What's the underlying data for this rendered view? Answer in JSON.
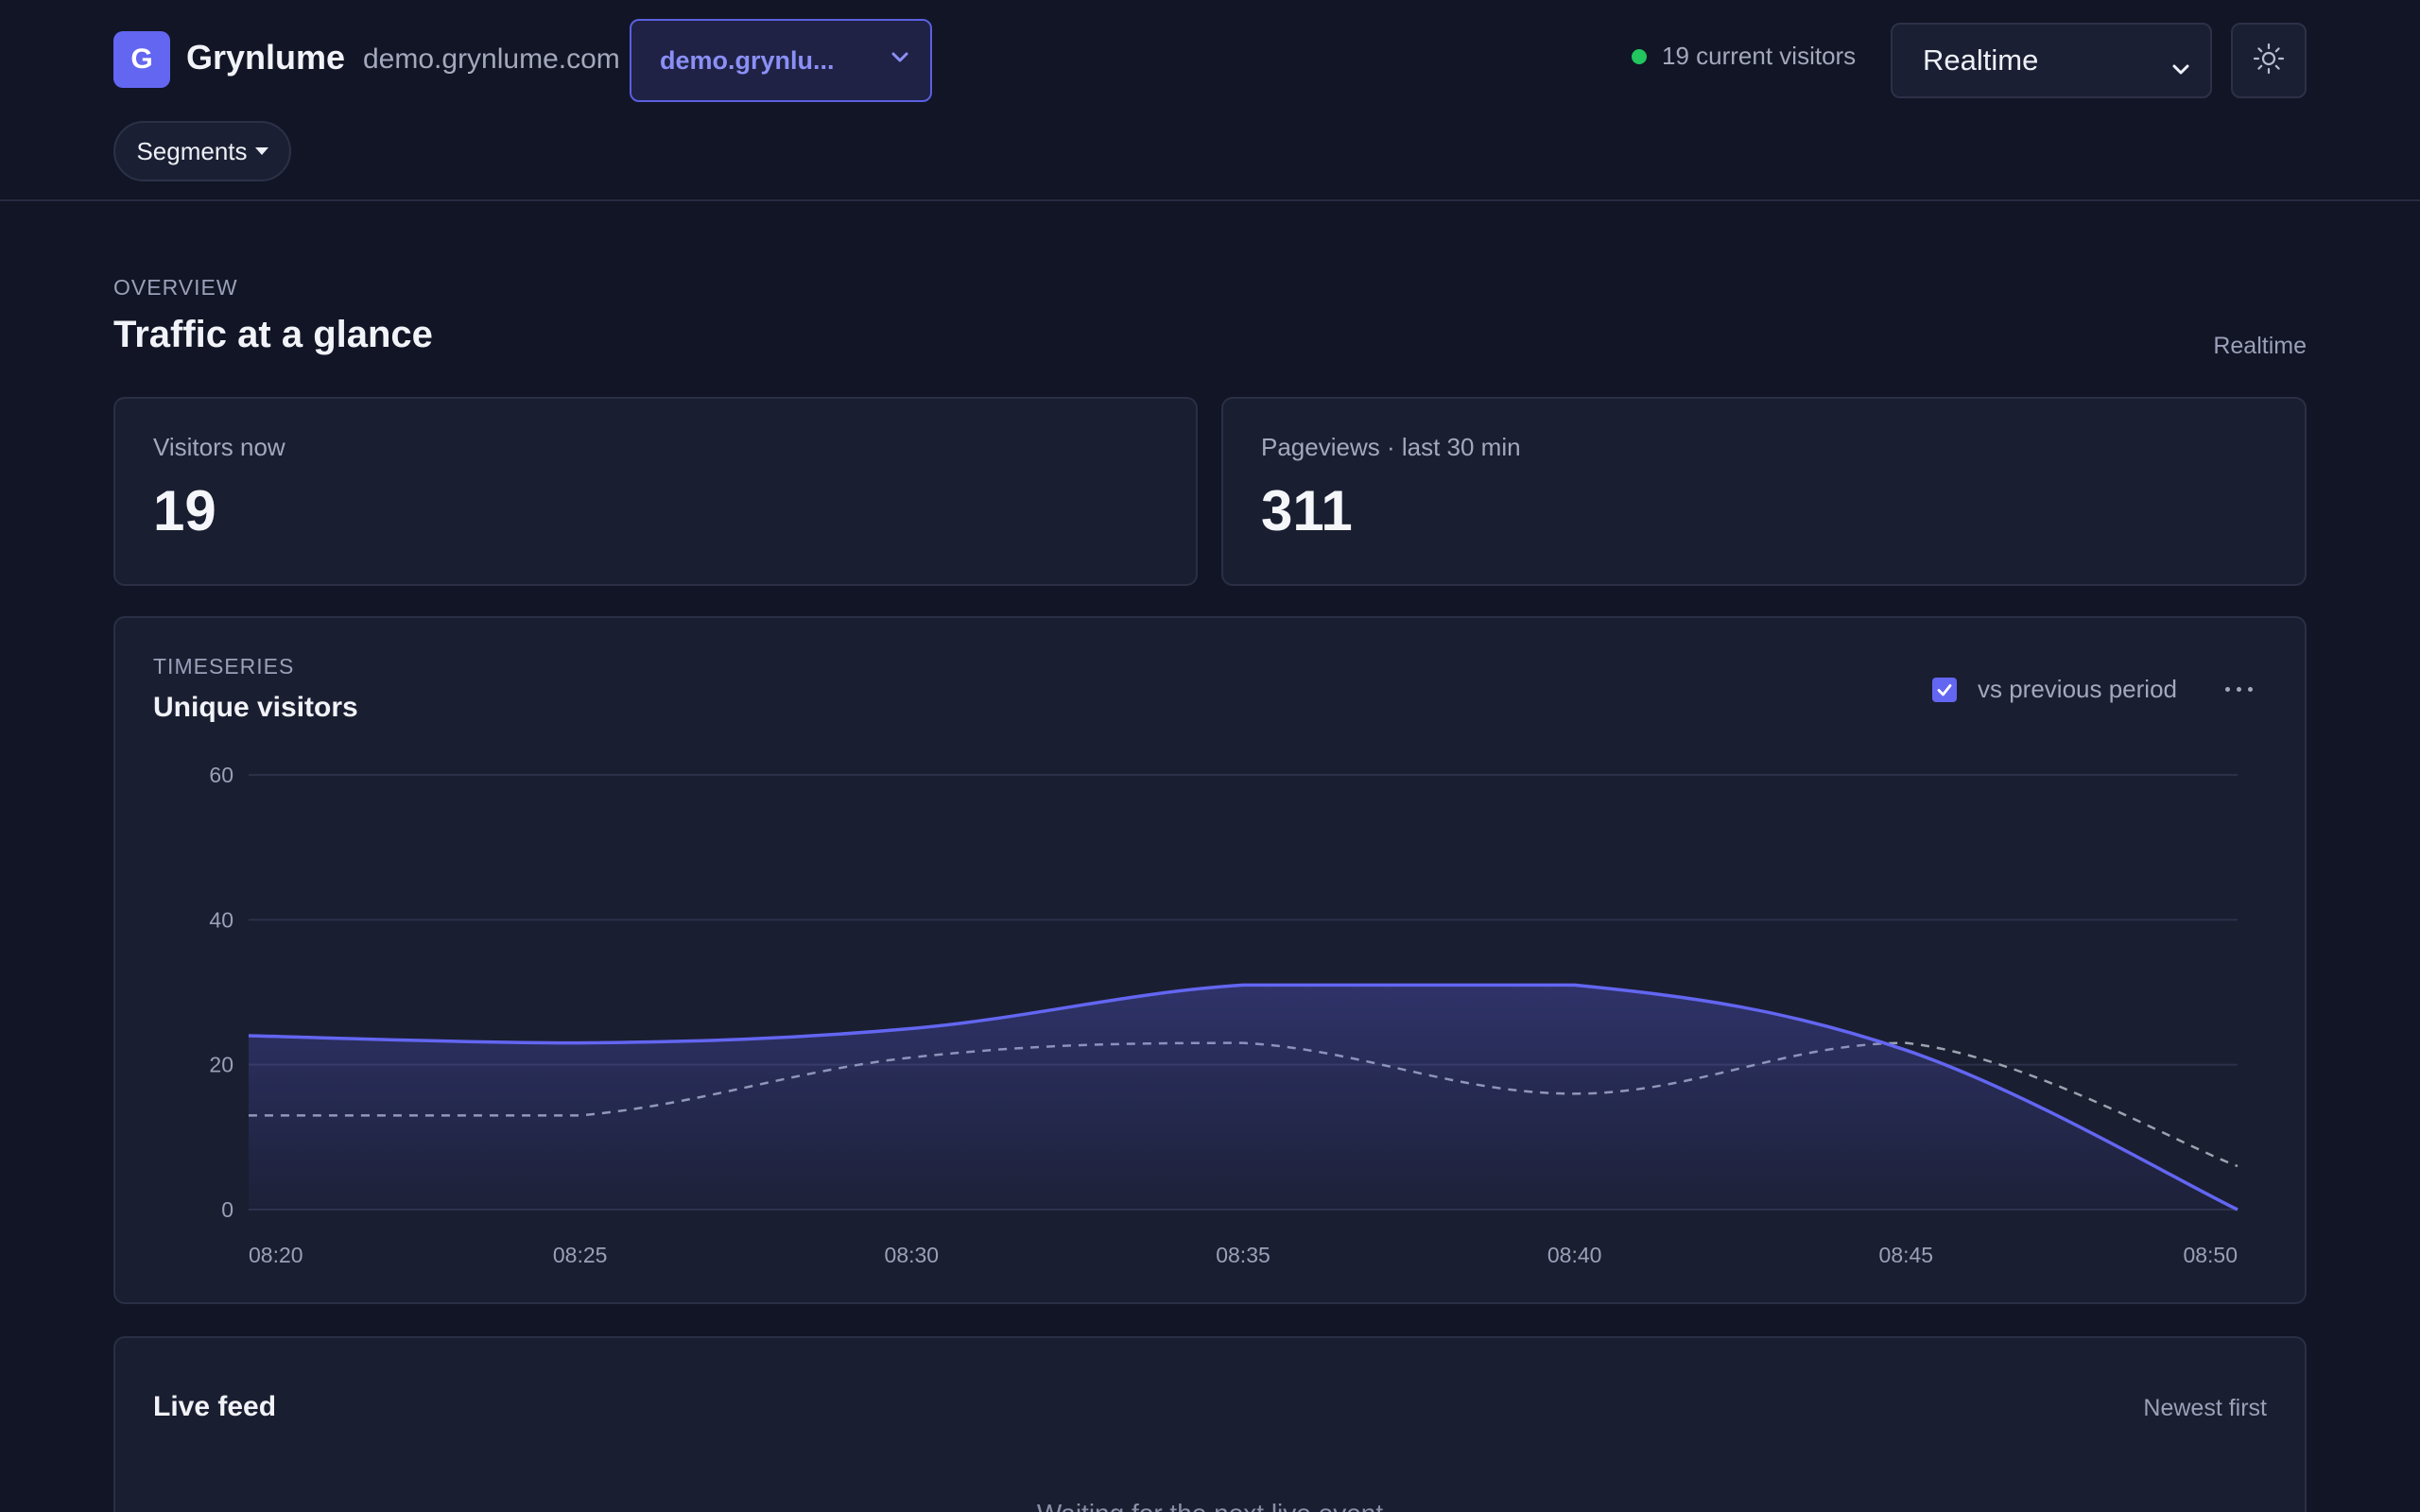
{
  "header": {
    "logo_letter": "G",
    "brand": "Grynlume",
    "domain": "demo.grynlume.com",
    "site_selector": "demo.grynlu...",
    "current_visitors": "19 current visitors",
    "range": "Realtime",
    "segments": "Segments",
    "icons": {
      "site_chevron": "chevron-down-icon",
      "range_chevron": "chevron-down-icon",
      "theme": "sun-icon",
      "segments_caret": "caret-down-icon"
    }
  },
  "overview": {
    "eyebrow": "OVERVIEW",
    "title": "Traffic at a glance",
    "range": "Realtime",
    "stats": [
      {
        "label": "Visitors now",
        "value": "19"
      },
      {
        "label": "Pageviews · last 30 min",
        "value": "311"
      }
    ]
  },
  "timeseries": {
    "eyebrow": "TIMESERIES",
    "title": "Unique visitors",
    "compare_label": "vs previous period",
    "compare_checked": true
  },
  "chart_data": {
    "type": "area",
    "x": [
      "08:20",
      "08:25",
      "08:30",
      "08:35",
      "08:40",
      "08:45",
      "08:50"
    ],
    "xlabel": "",
    "ylabel": "",
    "ylim": [
      0,
      60
    ],
    "yticks": [
      "0",
      "20",
      "40",
      "60"
    ],
    "grid": true,
    "series": [
      {
        "values": [
          24,
          23,
          25,
          31,
          31,
          22,
          0
        ],
        "color": "#6366f1",
        "style": "solid-area"
      },
      {
        "values": [
          13,
          13,
          21,
          23,
          16,
          23,
          6
        ],
        "color": "#9ca3af",
        "style": "dashed"
      }
    ]
  },
  "live_feed": {
    "title": "Live feed",
    "order": "Newest first",
    "empty": "Waiting for the next live event"
  },
  "colors": {
    "background": "#111525",
    "card": "#1a1e31",
    "accent": "#6366f1",
    "live": "#22c55e"
  }
}
